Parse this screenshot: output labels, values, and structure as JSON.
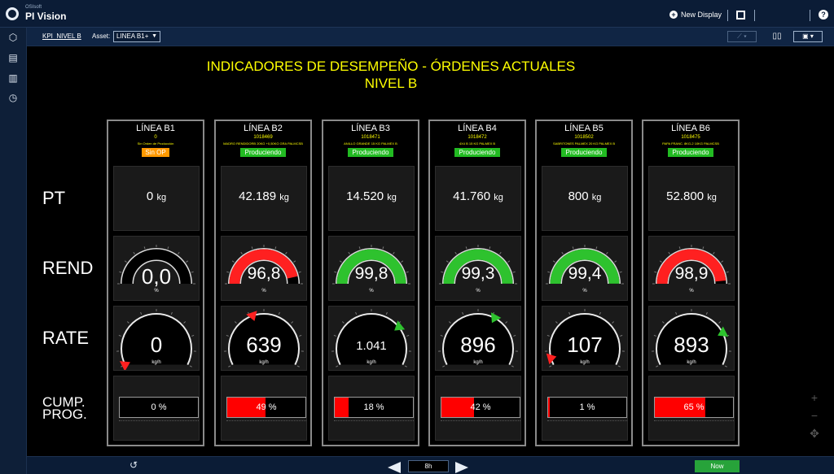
{
  "app": {
    "brand_small": "OSIsoft",
    "brand": "PI Vision"
  },
  "topbar": {
    "new_display": "New Display",
    "help": "?"
  },
  "toolbar": {
    "kpi_link": "KPI_NIVEL B",
    "asset_label": "Asset:",
    "asset_value": "LINEA B1+"
  },
  "display": {
    "title_line1": "INDICADORES DE DESEMPEÑO - ÓRDENES ACTUALES",
    "title_line2": "NIVEL B",
    "row_labels": {
      "pt": "PT",
      "rend": "REND",
      "rate": "RATE",
      "cump1": "CUMP.",
      "cump2": "PROG."
    }
  },
  "colors": {
    "title": "#ffff00",
    "gauge_green": "#2ec22e",
    "gauge_red": "#ff2020",
    "gauge_neutral": "#1a1a1a",
    "status_orange": "#ff9900",
    "status_green": "#22bb22",
    "progress_red": "#ff0000"
  },
  "lines": [
    {
      "name": "LÍNEA B1",
      "order": "0",
      "product": "Sin Orden de Producción",
      "status": "Sin OP",
      "status_color": "orange",
      "pt_value": "0",
      "pt_unit": "kg",
      "rend_value": "0,0",
      "rend_unit": "%",
      "rend_fill": 0,
      "rend_color": "neutral",
      "rate_value": "0",
      "rate_unit": "kg/h",
      "rate_pointer": 0.0,
      "prog_value": "0",
      "prog_unit": "%",
      "prog_fraction": 0.0
    },
    {
      "name": "LÍNEA B2",
      "order": "1018469",
      "product": "MADRO RENDIDORB 20KG +0,50KG GRA PALMCSB",
      "status": "Produciendo",
      "status_color": "green",
      "pt_value": "42.189",
      "pt_unit": "kg",
      "rend_value": "96,8",
      "rend_unit": "%",
      "rend_fill": 0.93,
      "rend_color": "red",
      "rate_value": "639",
      "rate_unit": "kg/h",
      "rate_pointer": 0.42,
      "prog_value": "49",
      "prog_unit": "%",
      "prog_fraction": 0.49
    },
    {
      "name": "LÍNEA B3",
      "order": "1018471",
      "product": "ANILLO GRANDE 15 KG PALMEX B",
      "status": "Produciendo",
      "status_color": "green",
      "pt_value": "14.520",
      "pt_unit": "kg",
      "rend_value": "99,8",
      "rend_unit": "%",
      "rend_fill": 1.0,
      "rend_color": "green",
      "rate_value": "1.041",
      "rate_unit": "kg/h",
      "rate_pointer": 0.72,
      "prog_value": "18",
      "prog_unit": "%",
      "prog_fraction": 0.18
    },
    {
      "name": "LÍNEA B4",
      "order": "1018472",
      "product": "4X4 B 15 KG PALMEX B",
      "status": "Produciendo",
      "status_color": "green",
      "pt_value": "41.760",
      "pt_unit": "kg",
      "rend_value": "99,3",
      "rend_unit": "%",
      "rend_fill": 1.0,
      "rend_color": "green",
      "rate_value": "896",
      "rate_unit": "kg/h",
      "rate_pointer": 0.62,
      "prog_value": "42",
      "prog_unit": "%",
      "prog_fraction": 0.42
    },
    {
      "name": "LÍNEA B5",
      "order": "1018502",
      "product": "SABRITONES PALMEX 20 KG PALMEX B",
      "status": "Produciendo",
      "status_color": "green",
      "pt_value": "800",
      "pt_unit": "kg",
      "rend_value": "99,4",
      "rend_unit": "%",
      "rend_fill": 1.0,
      "rend_color": "green",
      "rate_value": "107",
      "rate_unit": "kg/h",
      "rate_pointer": 0.05,
      "prog_value": "1",
      "prog_unit": "%",
      "prog_fraction": 0.01
    },
    {
      "name": "LÍNEA B6",
      "order": "1018475",
      "product": "PAPA FRANC. 8KG-2 10KG PALMCSB",
      "status": "Produciendo",
      "status_color": "green",
      "pt_value": "52.800",
      "pt_unit": "kg",
      "rend_value": "98,9",
      "rend_unit": "%",
      "rend_fill": 0.97,
      "rend_color": "red",
      "rate_value": "893",
      "rate_unit": "kg/h",
      "rate_pointer": 0.77,
      "prog_value": "65",
      "prog_unit": "%",
      "prog_fraction": 0.65
    }
  ],
  "bottombar": {
    "duration": "8h",
    "now": "Now"
  },
  "icons": [
    "pi-logo-icon",
    "plus-circle-icon",
    "window-icon",
    "help-icon",
    "cube-icon",
    "display-icon",
    "library-icon",
    "events-icon",
    "trend-icon",
    "columns-icon",
    "save-icon",
    "refresh-icon",
    "arrow-left-icon",
    "arrow-right-icon",
    "zoom-in-icon",
    "zoom-out-icon",
    "pan-icon"
  ]
}
